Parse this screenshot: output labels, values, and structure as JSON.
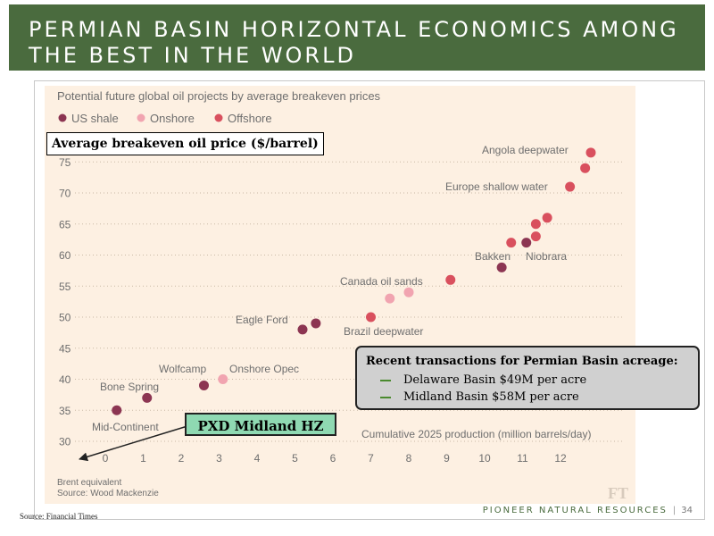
{
  "header": {
    "title": "PERMIAN BASIN HORIZONTAL ECONOMICS AMONG THE BEST IN THE WORLD"
  },
  "chart_data": {
    "type": "scatter",
    "title": "Potential future global oil projects by average breakeven prices",
    "ylabel": "Average breakeven oil price ($/barrel)",
    "xlabel": "Cumulative 2025 production (million barrels/day)",
    "xlim": [
      0,
      12.8
    ],
    "ylim": [
      30,
      75
    ],
    "xticks": [
      "0",
      "1",
      "2",
      "3",
      "4",
      "5",
      "6",
      "7",
      "8",
      "9",
      "10",
      "11",
      "12"
    ],
    "yticks": [
      "30",
      "35",
      "40",
      "45",
      "50",
      "55",
      "60",
      "65",
      "70",
      "75"
    ],
    "grid": "horizontal dotted",
    "legend_placement": "top-left",
    "series": [
      {
        "name": "US shale",
        "color": "#8c3552",
        "points": [
          [
            0.3,
            35
          ],
          [
            1.1,
            37
          ],
          [
            2.6,
            39
          ],
          [
            5.2,
            48
          ],
          [
            5.55,
            49
          ],
          [
            10.45,
            58
          ],
          [
            11.1,
            62
          ]
        ]
      },
      {
        "name": "Onshore",
        "color": "#f1a4b0",
        "points": [
          [
            3.1,
            40
          ],
          [
            7.5,
            53
          ],
          [
            8.0,
            54
          ]
        ]
      },
      {
        "name": "Offshore",
        "color": "#d9505e",
        "points": [
          [
            7.0,
            50
          ],
          [
            9.1,
            56
          ],
          [
            10.7,
            62
          ],
          [
            11.35,
            63
          ],
          [
            11.35,
            65
          ],
          [
            11.65,
            66
          ],
          [
            12.25,
            71
          ],
          [
            12.65,
            74
          ],
          [
            12.8,
            76.5
          ]
        ]
      }
    ],
    "annotations": [
      "Mid-Continent",
      "Bone Spring",
      "Wolfcamp",
      "Onshore Opec",
      "Eagle Ford",
      "Brazil deepwater",
      "Canada oil sands",
      "Bakken",
      "Niobrara",
      "Europe shallow water",
      "Angola deepwater"
    ],
    "notes": [
      "Brent equivalent",
      "Source: Wood Mackenzie"
    ],
    "logo": "FT"
  },
  "callouts": {
    "pxd_label": "PXD Midland HZ",
    "transactions": {
      "title": "Recent transactions for Permian Basin acreage:",
      "items": [
        "Delaware Basin $49M per acre",
        "Midland Basin $58M per acre"
      ]
    }
  },
  "footer": {
    "source": "Source: Financial Times",
    "company": "PIONEER NATURAL RESOURCES",
    "separator": "|",
    "page": "34"
  }
}
